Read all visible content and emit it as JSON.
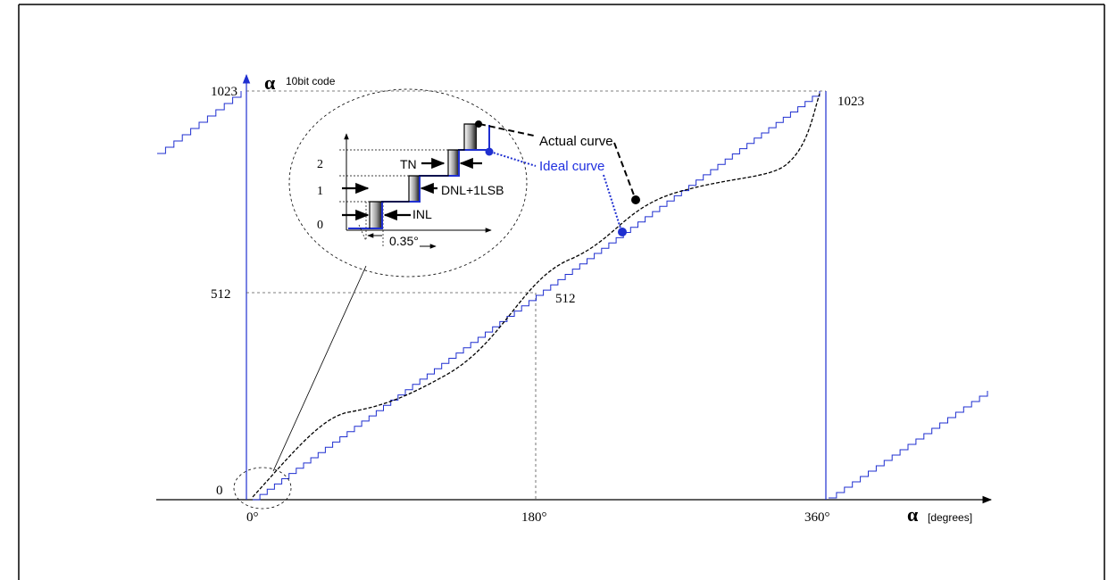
{
  "diagram": {
    "y_axis": {
      "symbol": "α",
      "label": "10bit code"
    },
    "x_axis": {
      "symbol": "α",
      "label": "[degrees]"
    },
    "y_ticks": [
      "1023",
      "512",
      "0"
    ],
    "x_ticks": [
      "0°",
      "180°",
      "360°"
    ],
    "point_labels": {
      "top_right": "1023",
      "middle": "512"
    },
    "inset": {
      "y_ticks": [
        "2",
        "1",
        "0"
      ],
      "labels": {
        "tn": "TN",
        "dnl": "DNL+1LSB",
        "inl": "INL",
        "step": "0.35°"
      }
    },
    "callouts": {
      "actual": "Actual curve",
      "ideal": "Ideal curve"
    },
    "colors": {
      "ideal": "#1f2fd0",
      "actual": "#000000",
      "ideal_label": "#2030e0"
    }
  }
}
